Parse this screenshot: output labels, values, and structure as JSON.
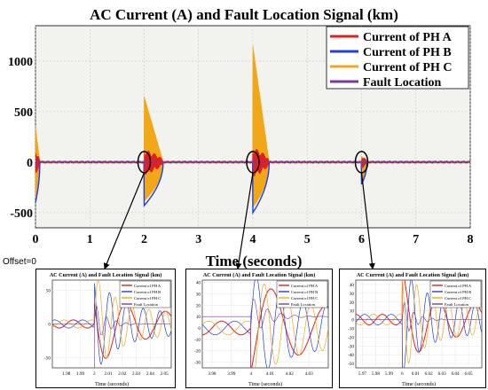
{
  "colors": {
    "phase_a": "#e02020",
    "phase_b": "#1f3fd6",
    "phase_c": "#f0a818",
    "fault_location": "#7a3a9a",
    "plot_bg": "#f2f2ef",
    "grid": "#c8c8c8",
    "axis": "#000000",
    "arrow": "#000000"
  },
  "main": {
    "offset_label": "Offset=0",
    "legend_title": "",
    "annotation_circle": "ellipse"
  },
  "chart_data": [
    {
      "id": "main",
      "type": "line",
      "title": "AC Current (A) and Fault Location Signal (km)",
      "xlabel": "Time (seconds)",
      "ylabel": "",
      "xlim": [
        0,
        8
      ],
      "ylim": [
        -650,
        1350
      ],
      "xticks": [
        0,
        1,
        2,
        3,
        4,
        5,
        6,
        7,
        8
      ],
      "yticks": [
        -500,
        0,
        500,
        1000
      ],
      "grid": true,
      "legend_position": "top-right",
      "series": [
        {
          "name": "Current of PH A",
          "color_key": "phase_a"
        },
        {
          "name": "Current of PH B",
          "color_key": "phase_b"
        },
        {
          "name": "Current of PH C",
          "color_key": "phase_c"
        },
        {
          "name": "Fault Location",
          "color_key": "fault_location"
        }
      ],
      "events": [
        {
          "time": 0.0,
          "peak": 350,
          "trough": -400,
          "decay": 0.08
        },
        {
          "time": 2.0,
          "peak": 650,
          "trough": -430,
          "decay": 0.35
        },
        {
          "time": 4.0,
          "peak": 1150,
          "trough": -500,
          "decay": 0.3
        },
        {
          "time": 6.0,
          "peak": 60,
          "trough": -220,
          "decay": 0.1
        }
      ],
      "steady_amplitude": 15
    },
    {
      "id": "zoom-2",
      "type": "line",
      "title": "AC Current (A) and Fault Location Signal (km)",
      "xlabel": "Time (seconds)",
      "xlim": [
        1.97,
        2.055
      ],
      "ylim": [
        -65,
        65
      ],
      "xticks": [
        1.98,
        1.99,
        2,
        2.01,
        2.02,
        2.03,
        2.04,
        2.05
      ],
      "xtick_labels": [
        "1.98",
        "1.99",
        "2",
        "2.01",
        "2.02",
        "2.03",
        "2.04",
        "2.05"
      ],
      "yticks": [
        -50,
        0,
        50
      ],
      "event_time": 2.0,
      "fault_level": 0,
      "series": [
        {
          "name": "Current of PH A",
          "color_key": "phase_a"
        },
        {
          "name": "Current of PH B",
          "color_key": "phase_b"
        },
        {
          "name": "Current of PH C",
          "color_key": "phase_c"
        },
        {
          "name": "Fault Location",
          "color_key": "fault_location"
        }
      ]
    },
    {
      "id": "zoom-4",
      "type": "line",
      "title": "AC Current (A) and Fault Location Signal (km)",
      "xlabel": "Time (seconds)",
      "xlim": [
        3.975,
        4.04
      ],
      "ylim": [
        -35,
        42
      ],
      "xticks": [
        3.98,
        3.99,
        4,
        4.01,
        4.02,
        4.03
      ],
      "xtick_labels": [
        "3.98",
        "3.99",
        "4",
        "4.01",
        "4.02",
        "4.03"
      ],
      "yticks": [
        -30,
        -20,
        -10,
        0,
        10,
        20,
        30,
        40
      ],
      "event_time": 4.0,
      "fault_level": 10,
      "series": [
        {
          "name": "Current of PH A",
          "color_key": "phase_a"
        },
        {
          "name": "Current of PH B",
          "color_key": "phase_b"
        },
        {
          "name": "Current of PH C",
          "color_key": "phase_c"
        },
        {
          "name": "Fault Location",
          "color_key": "fault_location"
        }
      ]
    },
    {
      "id": "zoom-6",
      "type": "line",
      "title": "AC Current (A) and Fault Location Signal (km)",
      "xlabel": "Time (seconds)",
      "xlim": [
        5.965,
        6.06
      ],
      "ylim": [
        -55,
        45
      ],
      "xticks": [
        5.97,
        5.98,
        5.99,
        6,
        6.01,
        6.02,
        6.03,
        6.04,
        6.05
      ],
      "xtick_labels": [
        "5.97",
        "5.98",
        "5.99",
        "6",
        "6.01",
        "6.02",
        "6.03",
        "6.04",
        "6.05"
      ],
      "yticks": [
        -50,
        -40,
        -30,
        -20,
        -10,
        0,
        10,
        20,
        30,
        40
      ],
      "event_time": 6.0,
      "fault_level": 0,
      "series": [
        {
          "name": "Current of PH A",
          "color_key": "phase_a"
        },
        {
          "name": "Current of PH B",
          "color_key": "phase_b"
        },
        {
          "name": "Current of PH C",
          "color_key": "phase_c"
        },
        {
          "name": "Fault Location",
          "color_key": "fault_location"
        }
      ]
    }
  ]
}
